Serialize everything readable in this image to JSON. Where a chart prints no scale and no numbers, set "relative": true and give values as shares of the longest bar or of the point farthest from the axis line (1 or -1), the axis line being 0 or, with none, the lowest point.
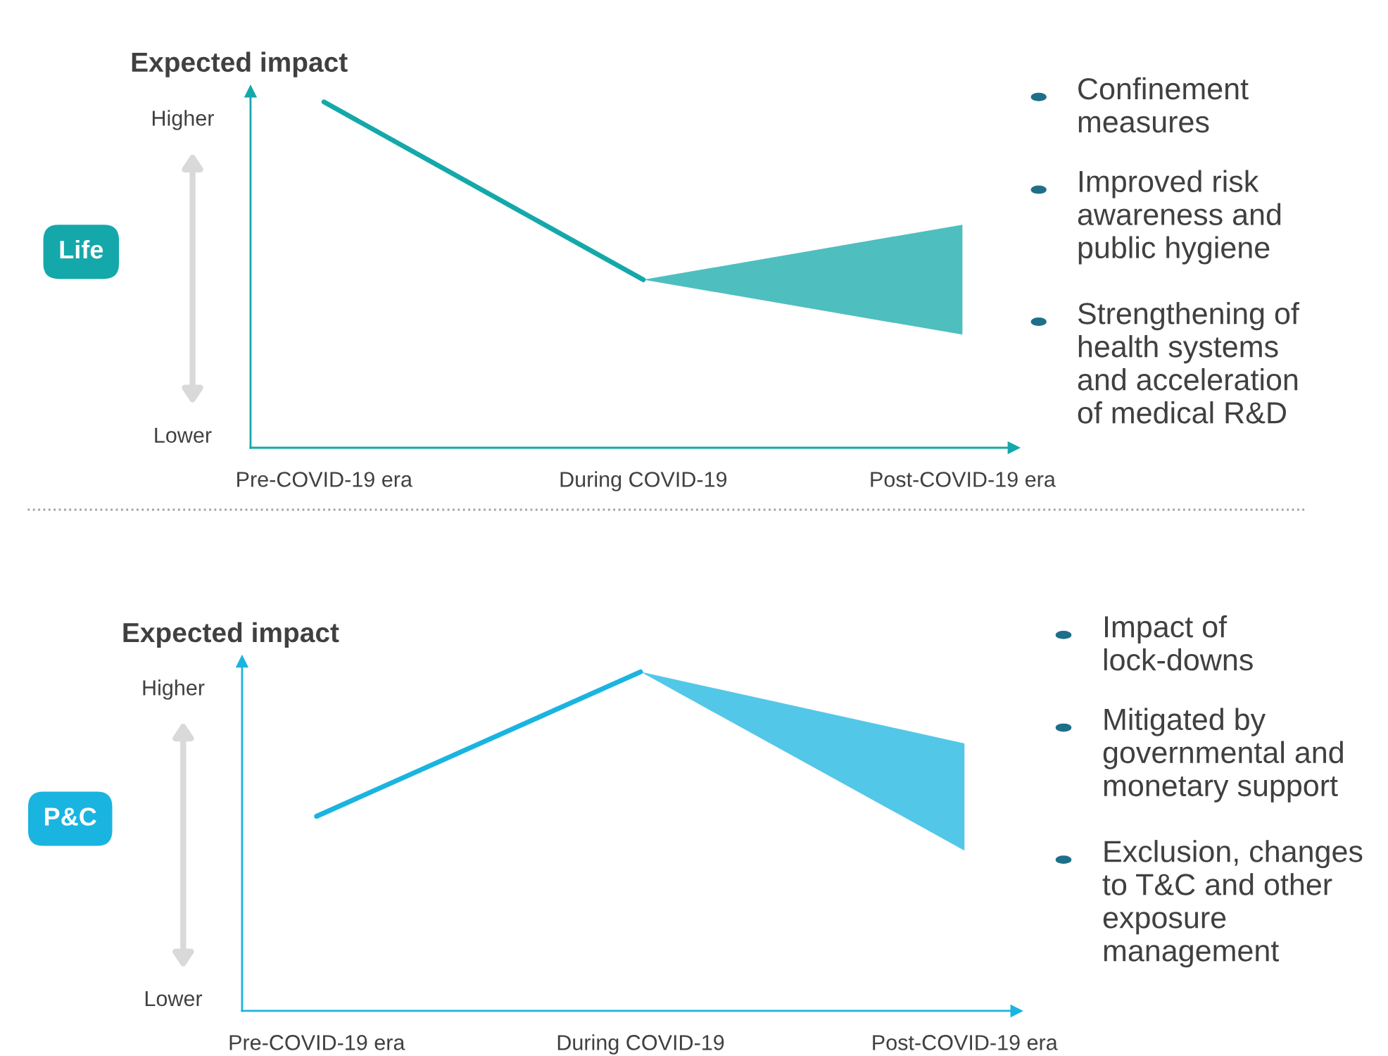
{
  "chart_data": [
    {
      "type": "line",
      "relative": true,
      "ylabel": "Expected impact",
      "categories": [
        "Pre-COVID-19 era",
        "During COVID-19",
        "Post-COVID-19 era"
      ],
      "grid": false,
      "legend": false,
      "series": [
        {
          "color": "#14a8aa",
          "values": [
            1,
            0.486,
            null
          ],
          "lower": [
            null,
            0.486,
            0.327
          ],
          "upper": [
            null,
            0.486,
            0.645
          ]
        }
      ],
      "annotations": [
        "Higher",
        "Lower",
        "Life",
        "Confinement\nmeasures",
        "Improved risk\nawareness and\npublic hygiene",
        "Strengthening of\nhealth systems\nand acceleration\nof medical R&D"
      ]
    },
    {
      "type": "line",
      "relative": true,
      "ylabel": "Expected impact",
      "categories": [
        "Pre-COVID-19 era",
        "During COVID-19",
        "Post-COVID-19 era"
      ],
      "grid": false,
      "legend": false,
      "series": [
        {
          "color": "#1ab4e0",
          "values": [
            0.574,
            1,
            null
          ],
          "lower": [
            null,
            1,
            0.473
          ],
          "upper": [
            null,
            1,
            0.789
          ]
        }
      ],
      "annotations": [
        "Higher",
        "Lower",
        "P&C",
        "Impact of\nlock-downs",
        "Mitigated by\ngovernmental and\nmonetary support",
        "Exclusion, changes\nto T&C and other\nexposure\nmanagement"
      ]
    }
  ]
}
